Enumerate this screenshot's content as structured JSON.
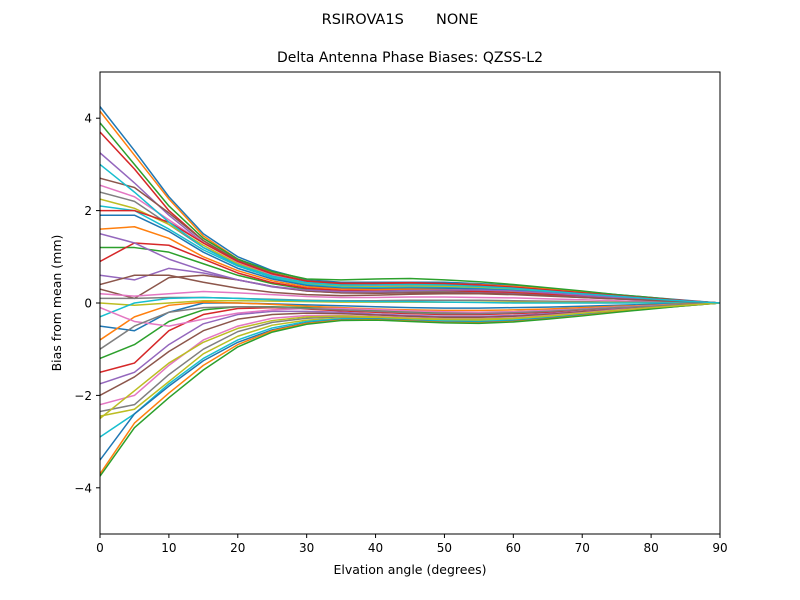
{
  "figure": {
    "suptitle": "RSIROVA1S       NONE"
  },
  "chart_data": {
    "type": "line",
    "title": "Delta Antenna Phase Biases: QZSS-L2",
    "xlabel": "Elvation angle (degrees)",
    "ylabel": "Bias from mean (mm)",
    "xlim": [
      0,
      90
    ],
    "ylim": [
      -5,
      5
    ],
    "xticks": [
      0,
      10,
      20,
      30,
      40,
      50,
      60,
      70,
      80,
      90
    ],
    "yticks": [
      -4,
      -2,
      0,
      2,
      4
    ],
    "xtick_labels": [
      "0",
      "10",
      "20",
      "30",
      "40",
      "50",
      "60",
      "70",
      "80",
      "90"
    ],
    "ytick_labels": [
      "−4",
      "−2",
      "0",
      "2",
      "4"
    ],
    "grid": false,
    "legend": "none",
    "colors": [
      "#1f77b4",
      "#ff7f0e",
      "#2ca02c",
      "#d62728",
      "#9467bd",
      "#8c564b",
      "#e377c2",
      "#7f7f7f",
      "#bcbd22",
      "#17becf"
    ],
    "x": [
      0,
      5,
      10,
      15,
      20,
      25,
      30,
      35,
      40,
      45,
      50,
      55,
      60,
      65,
      70,
      75,
      80,
      85,
      90
    ],
    "series": [
      {
        "values": [
          4.25,
          3.3,
          2.3,
          1.5,
          1.0,
          0.7,
          0.5,
          0.45,
          0.45,
          0.45,
          0.45,
          0.42,
          0.38,
          0.32,
          0.25,
          0.18,
          0.12,
          0.06,
          0
        ]
      },
      {
        "values": [
          4.15,
          3.2,
          2.25,
          1.45,
          0.95,
          0.65,
          0.48,
          0.42,
          0.42,
          0.43,
          0.42,
          0.4,
          0.36,
          0.3,
          0.24,
          0.17,
          0.11,
          0.05,
          0
        ]
      },
      {
        "values": [
          3.9,
          3.0,
          2.1,
          1.4,
          0.95,
          0.68,
          0.52,
          0.5,
          0.52,
          0.53,
          0.5,
          0.46,
          0.4,
          0.33,
          0.26,
          0.18,
          0.12,
          0.05,
          0
        ]
      },
      {
        "values": [
          3.7,
          2.9,
          2.0,
          1.35,
          0.9,
          0.62,
          0.47,
          0.43,
          0.43,
          0.44,
          0.42,
          0.39,
          0.34,
          0.28,
          0.22,
          0.16,
          0.1,
          0.05,
          0
        ]
      },
      {
        "values": [
          3.25,
          2.6,
          1.9,
          1.3,
          0.9,
          0.62,
          0.46,
          0.4,
          0.4,
          0.41,
          0.4,
          0.37,
          0.33,
          0.27,
          0.21,
          0.15,
          0.1,
          0.05,
          0
        ]
      },
      {
        "values": [
          2.7,
          2.5,
          1.95,
          1.35,
          0.92,
          0.64,
          0.48,
          0.42,
          0.42,
          0.43,
          0.41,
          0.38,
          0.33,
          0.27,
          0.21,
          0.15,
          0.1,
          0.05,
          0
        ]
      },
      {
        "values": [
          2.55,
          2.3,
          1.8,
          1.3,
          0.88,
          0.6,
          0.44,
          0.38,
          0.37,
          0.38,
          0.37,
          0.35,
          0.31,
          0.26,
          0.2,
          0.14,
          0.09,
          0.04,
          0
        ]
      },
      {
        "values": [
          2.4,
          2.2,
          1.7,
          1.2,
          0.85,
          0.58,
          0.42,
          0.36,
          0.35,
          0.36,
          0.35,
          0.33,
          0.3,
          0.25,
          0.19,
          0.14,
          0.09,
          0.04,
          0
        ]
      },
      {
        "values": [
          2.25,
          2.05,
          1.7,
          1.25,
          0.85,
          0.58,
          0.42,
          0.36,
          0.35,
          0.36,
          0.36,
          0.34,
          0.3,
          0.25,
          0.2,
          0.14,
          0.09,
          0.04,
          0
        ]
      },
      {
        "values": [
          2.1,
          2.0,
          1.6,
          1.15,
          0.8,
          0.55,
          0.4,
          0.34,
          0.33,
          0.34,
          0.33,
          0.31,
          0.28,
          0.23,
          0.18,
          0.13,
          0.08,
          0.04,
          0
        ]
      },
      {
        "values": [
          1.9,
          1.9,
          1.55,
          1.1,
          0.75,
          0.52,
          0.38,
          0.32,
          0.31,
          0.32,
          0.32,
          0.3,
          0.27,
          0.22,
          0.17,
          0.12,
          0.08,
          0.04,
          0
        ]
      },
      {
        "values": [
          1.6,
          1.65,
          1.4,
          1.0,
          0.7,
          0.48,
          0.35,
          0.3,
          0.29,
          0.3,
          0.29,
          0.27,
          0.24,
          0.2,
          0.16,
          0.11,
          0.07,
          0.03,
          0
        ]
      },
      {
        "values": [
          1.2,
          1.2,
          1.1,
          0.85,
          0.6,
          0.42,
          0.3,
          0.26,
          0.25,
          0.26,
          0.26,
          0.25,
          0.22,
          0.18,
          0.14,
          0.1,
          0.06,
          0.03,
          0
        ]
      },
      {
        "values": [
          0.9,
          1.3,
          1.25,
          0.95,
          0.65,
          0.44,
          0.32,
          0.27,
          0.26,
          0.27,
          0.27,
          0.25,
          0.22,
          0.19,
          0.15,
          0.1,
          0.07,
          0.03,
          0
        ]
      },
      {
        "values": [
          0.6,
          0.5,
          0.75,
          0.65,
          0.5,
          0.35,
          0.26,
          0.22,
          0.22,
          0.23,
          0.23,
          0.22,
          0.2,
          0.16,
          0.13,
          0.09,
          0.06,
          0.03,
          0
        ]
      },
      {
        "values": [
          0.3,
          0.1,
          0.55,
          0.6,
          0.5,
          0.36,
          0.26,
          0.22,
          0.21,
          0.22,
          0.22,
          0.21,
          0.19,
          0.16,
          0.12,
          0.09,
          0.06,
          0.03,
          0
        ]
      },
      {
        "values": [
          0.2,
          0.15,
          0.2,
          0.25,
          0.22,
          0.18,
          0.14,
          0.12,
          0.12,
          0.13,
          0.13,
          0.12,
          0.11,
          0.09,
          0.07,
          0.05,
          0.03,
          0.02,
          0
        ]
      },
      {
        "values": [
          0.1,
          0.1,
          0.12,
          0.12,
          0.1,
          0.08,
          0.06,
          0.05,
          0.05,
          0.06,
          0.06,
          0.06,
          0.05,
          0.04,
          0.03,
          0.02,
          0.02,
          0.01,
          0
        ]
      },
      {
        "values": [
          0.0,
          -0.05,
          0.0,
          0.05,
          0.05,
          0.04,
          0.03,
          0.02,
          0.02,
          0.02,
          0.02,
          0.02,
          0.02,
          0.01,
          0.01,
          0.01,
          0.0,
          0.0,
          0
        ]
      },
      {
        "values": [
          -0.3,
          0.0,
          0.1,
          0.12,
          0.1,
          0.07,
          0.05,
          0.04,
          0.03,
          0.03,
          0.02,
          0.01,
          0.0,
          0.0,
          0.0,
          0.0,
          0.0,
          0.0,
          0
        ]
      },
      {
        "values": [
          -0.5,
          -0.6,
          -0.2,
          0.0,
          0.0,
          -0.02,
          -0.04,
          -0.06,
          -0.08,
          -0.1,
          -0.11,
          -0.11,
          -0.1,
          -0.09,
          -0.07,
          -0.05,
          -0.03,
          -0.02,
          0
        ]
      },
      {
        "values": [
          -0.8,
          -0.3,
          -0.05,
          0.02,
          0.0,
          -0.03,
          -0.07,
          -0.1,
          -0.13,
          -0.15,
          -0.16,
          -0.16,
          -0.15,
          -0.13,
          -0.1,
          -0.07,
          -0.05,
          -0.02,
          0
        ]
      },
      {
        "values": [
          -1.2,
          -0.9,
          -0.4,
          -0.15,
          -0.08,
          -0.08,
          -0.1,
          -0.13,
          -0.16,
          -0.19,
          -0.2,
          -0.2,
          -0.19,
          -0.16,
          -0.13,
          -0.09,
          -0.06,
          -0.03,
          0
        ]
      },
      {
        "values": [
          -1.5,
          -1.3,
          -0.6,
          -0.25,
          -0.12,
          -0.1,
          -0.13,
          -0.17,
          -0.2,
          -0.23,
          -0.25,
          -0.25,
          -0.23,
          -0.2,
          -0.15,
          -0.11,
          -0.07,
          -0.03,
          0
        ]
      },
      {
        "values": [
          -1.75,
          -1.5,
          -0.9,
          -0.45,
          -0.25,
          -0.18,
          -0.18,
          -0.2,
          -0.24,
          -0.27,
          -0.29,
          -0.29,
          -0.27,
          -0.23,
          -0.18,
          -0.13,
          -0.08,
          -0.04,
          0
        ]
      },
      {
        "values": [
          -2.0,
          -1.6,
          -1.05,
          -0.6,
          -0.35,
          -0.25,
          -0.22,
          -0.23,
          -0.26,
          -0.29,
          -0.31,
          -0.31,
          -0.29,
          -0.25,
          -0.19,
          -0.14,
          -0.09,
          -0.04,
          0
        ]
      },
      {
        "values": [
          -2.2,
          -2.0,
          -1.35,
          -0.8,
          -0.5,
          -0.33,
          -0.27,
          -0.27,
          -0.29,
          -0.32,
          -0.34,
          -0.34,
          -0.32,
          -0.27,
          -0.21,
          -0.15,
          -0.1,
          -0.05,
          0
        ]
      },
      {
        "values": [
          -2.35,
          -2.2,
          -1.55,
          -1.0,
          -0.62,
          -0.42,
          -0.33,
          -0.3,
          -0.31,
          -0.34,
          -0.36,
          -0.36,
          -0.34,
          -0.29,
          -0.23,
          -0.16,
          -0.1,
          -0.05,
          0
        ]
      },
      {
        "values": [
          -2.45,
          -2.3,
          -1.7,
          -1.1,
          -0.72,
          -0.48,
          -0.37,
          -0.33,
          -0.33,
          -0.36,
          -0.38,
          -0.38,
          -0.35,
          -0.3,
          -0.24,
          -0.17,
          -0.11,
          -0.05,
          0
        ]
      },
      {
        "values": [
          -2.9,
          -2.4,
          -1.75,
          -1.2,
          -0.8,
          -0.54,
          -0.4,
          -0.34,
          -0.34,
          -0.37,
          -0.39,
          -0.4,
          -0.37,
          -0.32,
          -0.25,
          -0.18,
          -0.11,
          -0.05,
          0
        ]
      },
      {
        "values": [
          -3.4,
          -2.4,
          -1.8,
          -1.25,
          -0.85,
          -0.58,
          -0.43,
          -0.36,
          -0.35,
          -0.38,
          -0.41,
          -0.42,
          -0.39,
          -0.33,
          -0.26,
          -0.19,
          -0.12,
          -0.06,
          0
        ]
      },
      {
        "values": [
          -3.7,
          -2.6,
          -1.95,
          -1.35,
          -0.9,
          -0.6,
          -0.44,
          -0.37,
          -0.36,
          -0.39,
          -0.42,
          -0.43,
          -0.4,
          -0.34,
          -0.27,
          -0.19,
          -0.12,
          -0.06,
          0
        ]
      },
      {
        "values": [
          -3.75,
          -2.7,
          -2.05,
          -1.45,
          -0.95,
          -0.63,
          -0.46,
          -0.38,
          -0.37,
          -0.4,
          -0.43,
          -0.44,
          -0.41,
          -0.35,
          -0.28,
          -0.2,
          -0.13,
          -0.06,
          0
        ]
      },
      {
        "values": [
          2.0,
          2.0,
          1.75,
          1.3,
          0.9,
          0.63,
          0.47,
          0.42,
          0.42,
          0.43,
          0.42,
          0.39,
          0.34,
          0.28,
          0.22,
          0.16,
          0.1,
          0.05,
          0
        ]
      },
      {
        "values": [
          1.5,
          1.3,
          0.95,
          0.7,
          0.5,
          0.36,
          0.28,
          0.25,
          0.25,
          0.27,
          0.28,
          0.28,
          0.26,
          0.22,
          0.17,
          0.12,
          0.08,
          0.04,
          0
        ]
      },
      {
        "values": [
          0.4,
          0.6,
          0.6,
          0.45,
          0.32,
          0.23,
          0.18,
          0.16,
          0.17,
          0.19,
          0.2,
          0.2,
          0.18,
          0.15,
          0.12,
          0.09,
          0.06,
          0.03,
          0
        ]
      },
      {
        "values": [
          -0.1,
          -0.4,
          -0.5,
          -0.35,
          -0.22,
          -0.15,
          -0.12,
          -0.12,
          -0.14,
          -0.17,
          -0.19,
          -0.2,
          -0.19,
          -0.16,
          -0.13,
          -0.09,
          -0.06,
          -0.03,
          0
        ]
      },
      {
        "values": [
          -1.0,
          -0.5,
          -0.2,
          -0.1,
          -0.08,
          -0.09,
          -0.12,
          -0.15,
          -0.18,
          -0.21,
          -0.23,
          -0.23,
          -0.21,
          -0.18,
          -0.14,
          -0.1,
          -0.07,
          -0.03,
          0
        ]
      },
      {
        "values": [
          -2.5,
          -1.9,
          -1.3,
          -0.85,
          -0.55,
          -0.38,
          -0.3,
          -0.28,
          -0.3,
          -0.33,
          -0.35,
          -0.35,
          -0.33,
          -0.28,
          -0.22,
          -0.16,
          -0.1,
          -0.05,
          0
        ]
      },
      {
        "values": [
          3.0,
          2.4,
          1.75,
          1.2,
          0.82,
          0.58,
          0.44,
          0.39,
          0.39,
          0.4,
          0.39,
          0.36,
          0.32,
          0.26,
          0.2,
          0.15,
          0.09,
          0.04,
          0
        ]
      }
    ]
  }
}
